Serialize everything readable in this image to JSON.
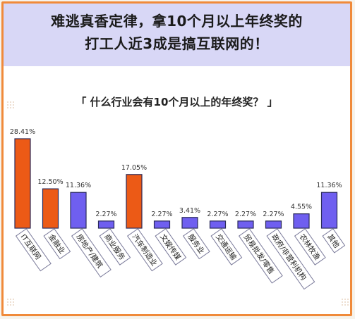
{
  "header": {
    "title_line1": "难逃真香定律，拿10个月以上年终奖的",
    "title_line2": "打工人近3成是搞互联网的！"
  },
  "subtitle": "「 什么行业会有10个月以上的年终奖？ 」",
  "colors": {
    "accent_orange": "#ec5a16",
    "purple": "#6f5ff0",
    "frame_border": "#f08a3a",
    "header_bg": "#d8d7f6"
  },
  "chart_data": {
    "type": "bar",
    "title": "「 什么行业会有10个月以上的年终奖？ 」",
    "categories": [
      "IT互联网",
      "金融业",
      "房地产/建筑",
      "商业服务",
      "汽车制造业",
      "文娱传媒",
      "服务业",
      "交通运输",
      "贸易批发/零售",
      "政府/非营利机构",
      "农林牧渔",
      "其他"
    ],
    "values": [
      28.41,
      12.5,
      11.36,
      2.27,
      17.05,
      2.27,
      3.41,
      2.27,
      2.27,
      2.27,
      4.55,
      11.36
    ],
    "value_labels": [
      "28.41%",
      "12.50%",
      "11.36%",
      "2.27%",
      "17.05%",
      "2.27%",
      "3.41%",
      "2.27%",
      "2.27%",
      "2.27%",
      "4.55%",
      "11.36%"
    ],
    "highlight": [
      true,
      true,
      false,
      false,
      true,
      false,
      false,
      false,
      false,
      false,
      false,
      false
    ],
    "ylim": [
      0,
      30
    ],
    "grid": false,
    "legend": "none"
  }
}
